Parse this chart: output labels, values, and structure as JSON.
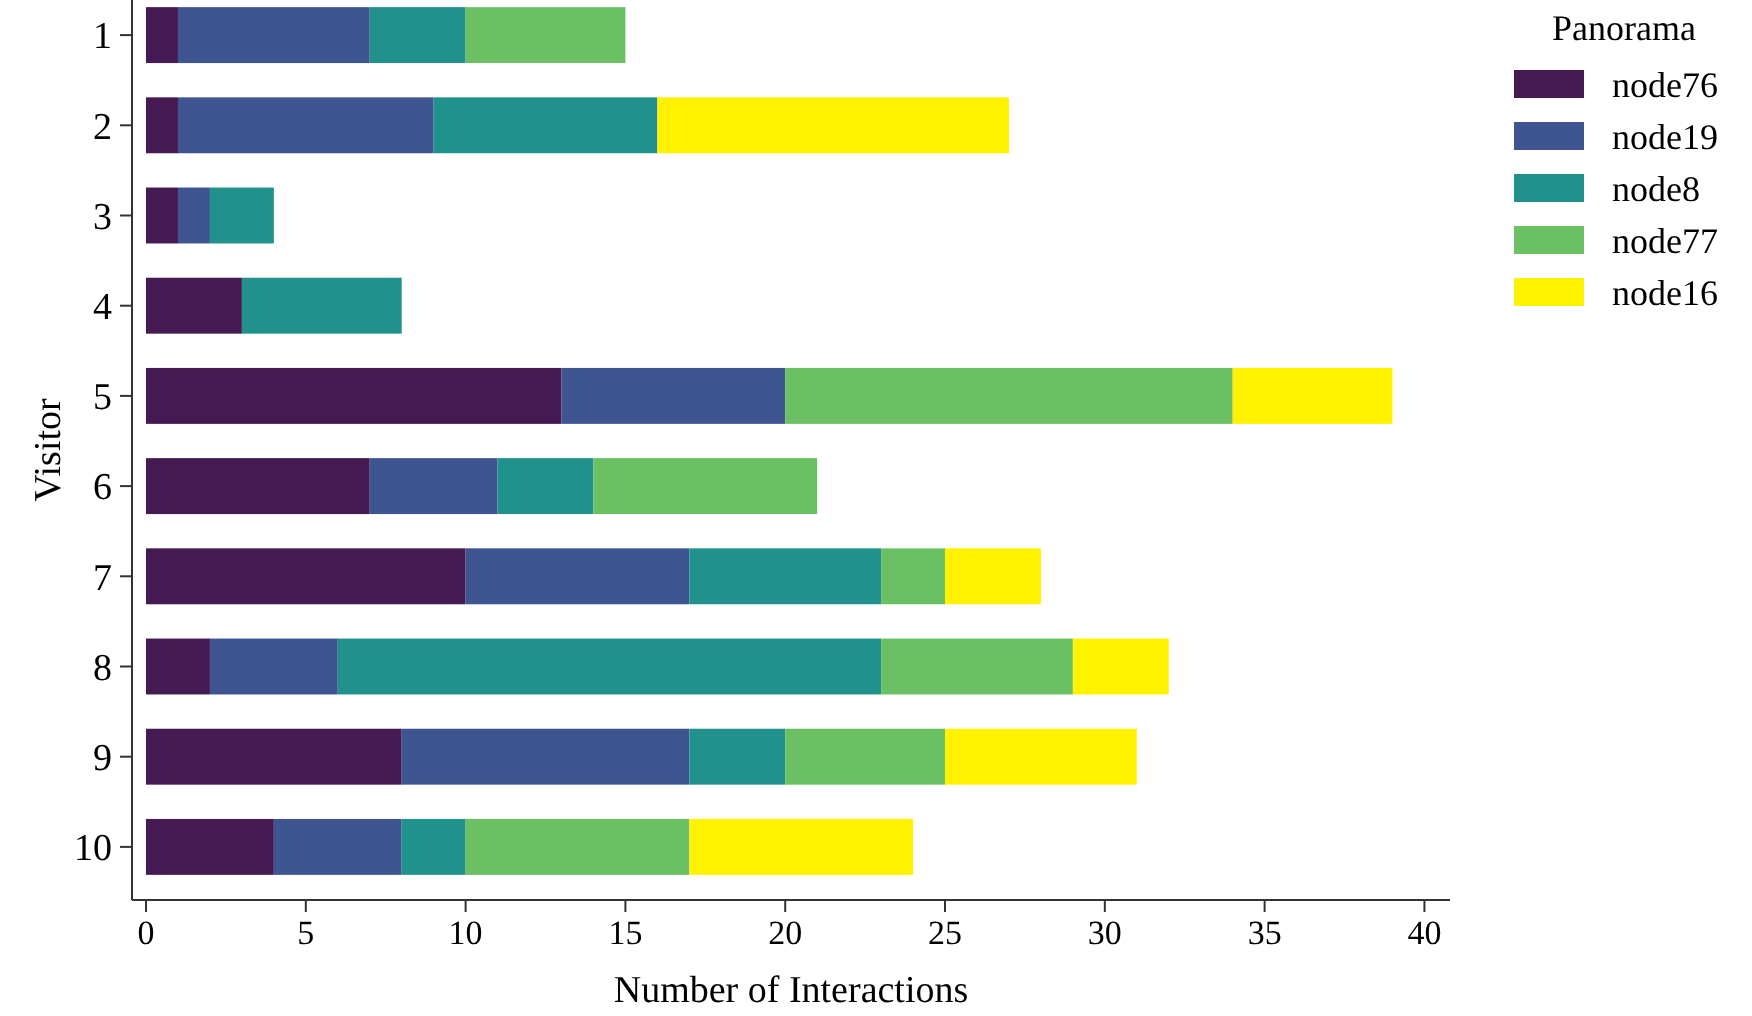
{
  "chart_data": {
    "type": "bar",
    "orientation": "horizontal",
    "stacked": true,
    "xlabel": "Number of Interactions",
    "ylabel": "Visitor",
    "legend_title": "Panorama",
    "legend": "top right",
    "grid": false,
    "categories": [
      "1",
      "2",
      "3",
      "4",
      "5",
      "6",
      "7",
      "8",
      "9",
      "10"
    ],
    "xlim": [
      0,
      40.8
    ],
    "xticks": [
      0,
      5,
      10,
      15,
      20,
      25,
      30,
      35,
      40
    ],
    "series": [
      {
        "name": "node76",
        "color": "#451952",
        "values": [
          1,
          1,
          1,
          3,
          13,
          7,
          10,
          2,
          8,
          4
        ]
      },
      {
        "name": "node19",
        "color": "#3e5591",
        "values": [
          6,
          8,
          1,
          0,
          7,
          4,
          7,
          4,
          9,
          4
        ]
      },
      {
        "name": "node8",
        "color": "#21918c",
        "values": [
          3,
          7,
          2,
          5,
          0,
          3,
          6,
          17,
          3,
          2
        ]
      },
      {
        "name": "node77",
        "color": "#6cc064",
        "values": [
          5,
          0,
          0,
          0,
          14,
          7,
          2,
          6,
          5,
          7
        ]
      },
      {
        "name": "node16",
        "color": "#fff200",
        "values": [
          0,
          11,
          0,
          0,
          5,
          0,
          3,
          3,
          6,
          7
        ]
      }
    ]
  }
}
